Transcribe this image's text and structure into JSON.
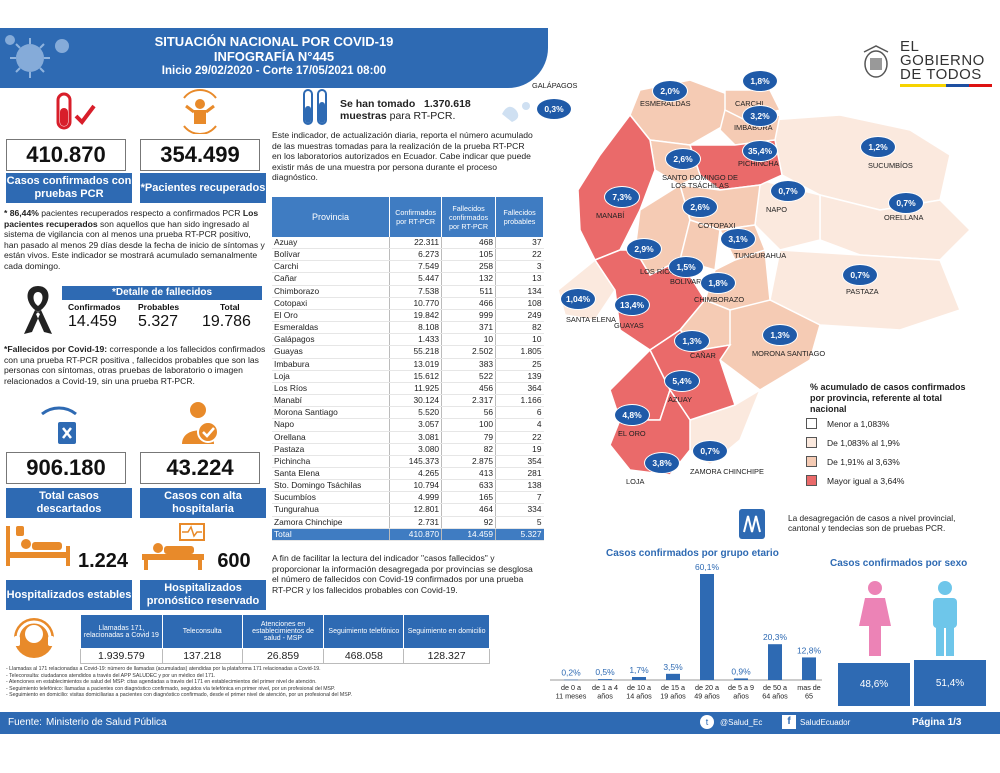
{
  "header": {
    "line1": "SITUACIÓN NACIONAL POR  COVID-19",
    "line2": "INFOGRAFÍA N°445",
    "line3": "Inicio 29/02/2020 - Corte 17/05/2021 08:00"
  },
  "logo": {
    "text": "EL GOBIERNO DE TODOS"
  },
  "kpis": {
    "confirmados": {
      "value": "410.870",
      "label": "Casos confirmados con pruebas PCR"
    },
    "recuperados": {
      "value": "354.499",
      "label": "*Pacientes recuperados"
    },
    "descartados": {
      "value": "906.180",
      "label": "Total casos descartados"
    },
    "alta": {
      "value": "43.224",
      "label": "Casos con alta hospitalaria"
    },
    "estables": {
      "value": "1.224",
      "label": "Hospitalizados estables"
    },
    "reservado": {
      "value": "600",
      "label": "Hospitalizados pronóstico reservado"
    }
  },
  "recovered_note": {
    "pct": "* 86,44%",
    "pct_rest": " pacientes recuperados respecto a confirmados PCR",
    "bold": "Los pacientes recuperados",
    "rest": " son aquellos que han sido ingresado al sistema de vigilancia con al menos una prueba RT-PCR positivo, han pasado al menos 29 días desde la fecha de inicio de síntomas y están vivos. Este indicador se mostrará acumulado semanalmente cada domingo."
  },
  "deaths": {
    "title": "*Detalle de fallecidos",
    "confirmados_label": "Confirmados",
    "confirmados": "14.459",
    "probables_label": "Probables",
    "probables": "5.327",
    "total_label": "Total",
    "total": "19.786",
    "note_bold": "*Fallecidos por Covid-19:",
    "note": " corresponde a los fallecidos confirmados con una prueba RT-PCR positiva , fallecidos probables que son las personas con síntomas, otras pruebas de laboratorio o imagen relacionados a Covid-19, sin una prueba RT-PCR."
  },
  "samples": {
    "prefix": "Se han tomado",
    "value": "1.370.618",
    "bold2": "muestras",
    "suffix": "para RT-PCR.",
    "note": "Este indicador, de actualización diaria, reporta el número acumulado de las muestras tomadas para la realización de la prueba RT-PCR en los laboratorios autorizados en Ecuador. Cabe indicar que puede existir más de una muestra por persona durante el proceso diagnóstico."
  },
  "province_table": {
    "headers": [
      "Provincia",
      "Confirmados por RT-PCR",
      "Fallecidos confirmados por RT-PCR",
      "Fallecidos probables"
    ],
    "rows": [
      [
        "Azuay",
        "22.311",
        "468",
        "37"
      ],
      [
        "Bolívar",
        "6.273",
        "105",
        "22"
      ],
      [
        "Carchi",
        "7.549",
        "258",
        "3"
      ],
      [
        "Cañar",
        "5.447",
        "132",
        "13"
      ],
      [
        "Chimborazo",
        "7.538",
        "511",
        "134"
      ],
      [
        "Cotopaxi",
        "10.770",
        "466",
        "108"
      ],
      [
        "El Oro",
        "19.842",
        "999",
        "249"
      ],
      [
        "Esmeraldas",
        "8.108",
        "371",
        "82"
      ],
      [
        "Galápagos",
        "1.433",
        "10",
        "10"
      ],
      [
        "Guayas",
        "55.218",
        "2.502",
        "1.805"
      ],
      [
        "Imbabura",
        "13.019",
        "383",
        "25"
      ],
      [
        "Loja",
        "15.612",
        "522",
        "139"
      ],
      [
        "Los Ríos",
        "11.925",
        "456",
        "364"
      ],
      [
        "Manabí",
        "30.124",
        "2.317",
        "1.166"
      ],
      [
        "Morona Santiago",
        "5.520",
        "56",
        "6"
      ],
      [
        "Napo",
        "3.057",
        "100",
        "4"
      ],
      [
        "Orellana",
        "3.081",
        "79",
        "22"
      ],
      [
        "Pastaza",
        "3.080",
        "82",
        "19"
      ],
      [
        "Pichincha",
        "145.373",
        "2.875",
        "354"
      ],
      [
        "Santa Elena",
        "4.265",
        "413",
        "281"
      ],
      [
        "Sto. Domingo Tsáchilas",
        "10.794",
        "633",
        "138"
      ],
      [
        "Sucumbíos",
        "4.999",
        "165",
        "7"
      ],
      [
        "Tungurahua",
        "12.801",
        "464",
        "334"
      ],
      [
        "Zamora Chinchipe",
        "2.731",
        "92",
        "5"
      ]
    ],
    "total": [
      "Total",
      "410.870",
      "14.459",
      "5.327"
    ]
  },
  "table_note": "A fin de facilitar la lectura del indicador \"casos fallecidos\" y proporcionar la información desagregada por provincias se desglosa el número de fallecidos con Covid-19 confirmados por una prueba RT-PCR y los fallecidos probables con Covid-19.",
  "map": {
    "provinces": [
      {
        "name": "ESMERALDAS",
        "pct": "2,0%",
        "color": "#f5cbb4"
      },
      {
        "name": "CARCHI",
        "pct": "1,8%",
        "color": "#f5cbb4"
      },
      {
        "name": "IMBABURA",
        "pct": "3,2%",
        "color": "#f5cbb4"
      },
      {
        "name": "SUCUMBÍOS",
        "pct": "1,2%",
        "color": "#fbe9de"
      },
      {
        "name": "PICHINCHA",
        "pct": "35,4%",
        "color": "#ea6a6a"
      },
      {
        "name": "SANTO DOMINGO DE LOS TSÁCHILAS",
        "pct": "2,6%",
        "color": "#f5cbb4"
      },
      {
        "name": "MANABÍ",
        "pct": "7,3%",
        "color": "#ea6a6a"
      },
      {
        "name": "NAPO",
        "pct": "0,7%",
        "color": "#fbe9de"
      },
      {
        "name": "ORELLANA",
        "pct": "0,7%",
        "color": "#fbe9de"
      },
      {
        "name": "COTOPAXI",
        "pct": "2,6%",
        "color": "#f5cbb4"
      },
      {
        "name": "TUNGURAHUA",
        "pct": "3,1%",
        "color": "#f5cbb4"
      },
      {
        "name": "LOS RÍOS",
        "pct": "2,9%",
        "color": "#f5cbb4"
      },
      {
        "name": "BOLÍVAR",
        "pct": "1,5%",
        "color": "#f5cbb4"
      },
      {
        "name": "CHIMBORAZO",
        "pct": "1,8%",
        "color": "#f5cbb4"
      },
      {
        "name": "PASTAZA",
        "pct": "0,7%",
        "color": "#fbe9de"
      },
      {
        "name": "SANTA ELENA",
        "pct": "1,04%",
        "color": "#fbe9de"
      },
      {
        "name": "GUAYAS",
        "pct": "13,4%",
        "color": "#ea6a6a"
      },
      {
        "name": "CAÑAR",
        "pct": "1,3%",
        "color": "#f5cbb4"
      },
      {
        "name": "MORONA SANTIAGO",
        "pct": "1,3%",
        "color": "#f5cbb4"
      },
      {
        "name": "AZUAY",
        "pct": "5,4%",
        "color": "#ea6a6a"
      },
      {
        "name": "EL ORO",
        "pct": "4,8%",
        "color": "#ea6a6a"
      },
      {
        "name": "LOJA",
        "pct": "3,8%",
        "color": "#ea6a6a"
      },
      {
        "name": "ZAMORA CHINCHIPE",
        "pct": "0,7%",
        "color": "#fbe9de"
      },
      {
        "name": "GALÁPAGOS",
        "pct": "0,3%",
        "color": "#fbe9de"
      }
    ],
    "legend_title": "% acumulado de casos confirmados por provincia, referente al total nacional",
    "legend": [
      {
        "label": "Menor a 1,083%",
        "color": "#ffffff"
      },
      {
        "label": "De 1,083% al 1,9%",
        "color": "#fbe9de"
      },
      {
        "label": "De 1,91% al 3,63%",
        "color": "#f5cbb4"
      },
      {
        "label": "Mayor igual a 3,64%",
        "color": "#ea6a6a"
      }
    ],
    "note": "La desagregación de casos a nivel provincial, cantonal y tendecias son de pruebas PCR."
  },
  "chart_data": [
    {
      "type": "bar",
      "title": "Casos confirmados por grupo etario",
      "categories": [
        "de 0 a 11 meses",
        "de 1 a 4 años",
        "de 10 a 14 años",
        "de 15 a 19 años",
        "de 20 a 49 años",
        "de 5 a 9 años",
        "de 50 a 64 años",
        "mas de 65"
      ],
      "values": [
        0.2,
        0.5,
        1.7,
        3.5,
        60.1,
        0.9,
        20.3,
        12.8
      ],
      "labels": [
        "0,2%",
        "0,5%",
        "1,7%",
        "3,5%",
        "60,1%",
        "0,9%",
        "20,3%",
        "12,8%"
      ],
      "color": "#2e6ab3"
    },
    {
      "type": "bar",
      "title": "Casos confirmados por sexo",
      "categories": [
        "Mujeres",
        "Hombres"
      ],
      "values": [
        48.6,
        51.4
      ],
      "labels": [
        "48,6%",
        "51,4%"
      ],
      "colors": [
        "#ec83b6",
        "#6ec6ea"
      ]
    }
  ],
  "followup_table": {
    "headers": [
      "Llamadas 171, relacionadas a Covid 19",
      "Teleconsulta",
      "Atenciones en establecimientos de salud - MSP",
      "Seguimiento telefónico",
      "Seguimiento en domicilio"
    ],
    "values": [
      "1.939.579",
      "137.218",
      "26.859",
      "468.058",
      "128.327"
    ]
  },
  "notes": [
    "- Llamadas al 171 relacionadas a Covid-19: número de llamadas (acumuladas) atendidas por la plataforma 171 relacionadas a Covid-19.",
    "- Teleconsulta: ciudadanos atendidos a través del APP SALUDEC y por un médico del 171.",
    "- Atenciones en establecimientos de salud del MSP: citas agendadas a través del 171 en establecimientos del primer nivel de atención.",
    "- Seguimiento telefónico: llamadas a pacientes con diagnóstico confirmado, seguidos vía telefónica en primer nivel, por un profesional del MSP.",
    "- Seguimiento en domicilio: visitas domiciliarias a pacientes con diagnóstico confirmado, desde el primer nivel de atención, por un profesional del MSP."
  ],
  "footer": {
    "source_label": "Fuente:",
    "source": "Ministerio de Salud Pública",
    "twitter": "@Salud_Ec",
    "facebook": "SaludEcuador",
    "page": "Página 1/3"
  }
}
